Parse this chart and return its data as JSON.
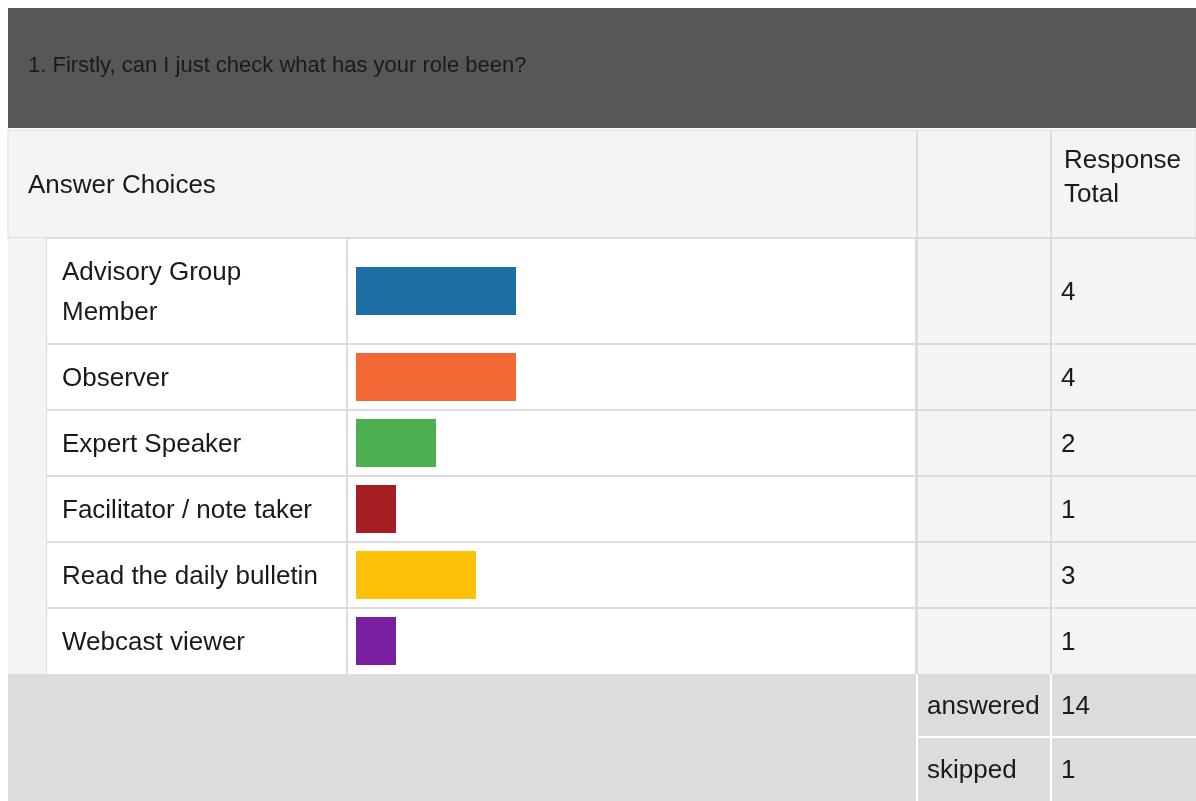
{
  "chart_data": {
    "type": "bar",
    "orientation": "horizontal",
    "title": "1. Firstly, can I just check what has your role been?",
    "categories": [
      "Advisory Group Member",
      "Observer",
      "Expert Speaker",
      "Facilitator / note taker",
      "Read the daily bulletin",
      "Webcast viewer"
    ],
    "values": [
      4,
      4,
      2,
      1,
      3,
      1
    ],
    "colors": [
      "#1c6ea4",
      "#f26835",
      "#4caf50",
      "#a41e22",
      "#ffc107",
      "#7b1fa2"
    ],
    "xlim": [
      0,
      14
    ],
    "data_labels": true,
    "annotations": [
      "Answer Choices",
      "Response Total",
      "answered",
      "14",
      "skipped",
      "1"
    ]
  }
}
